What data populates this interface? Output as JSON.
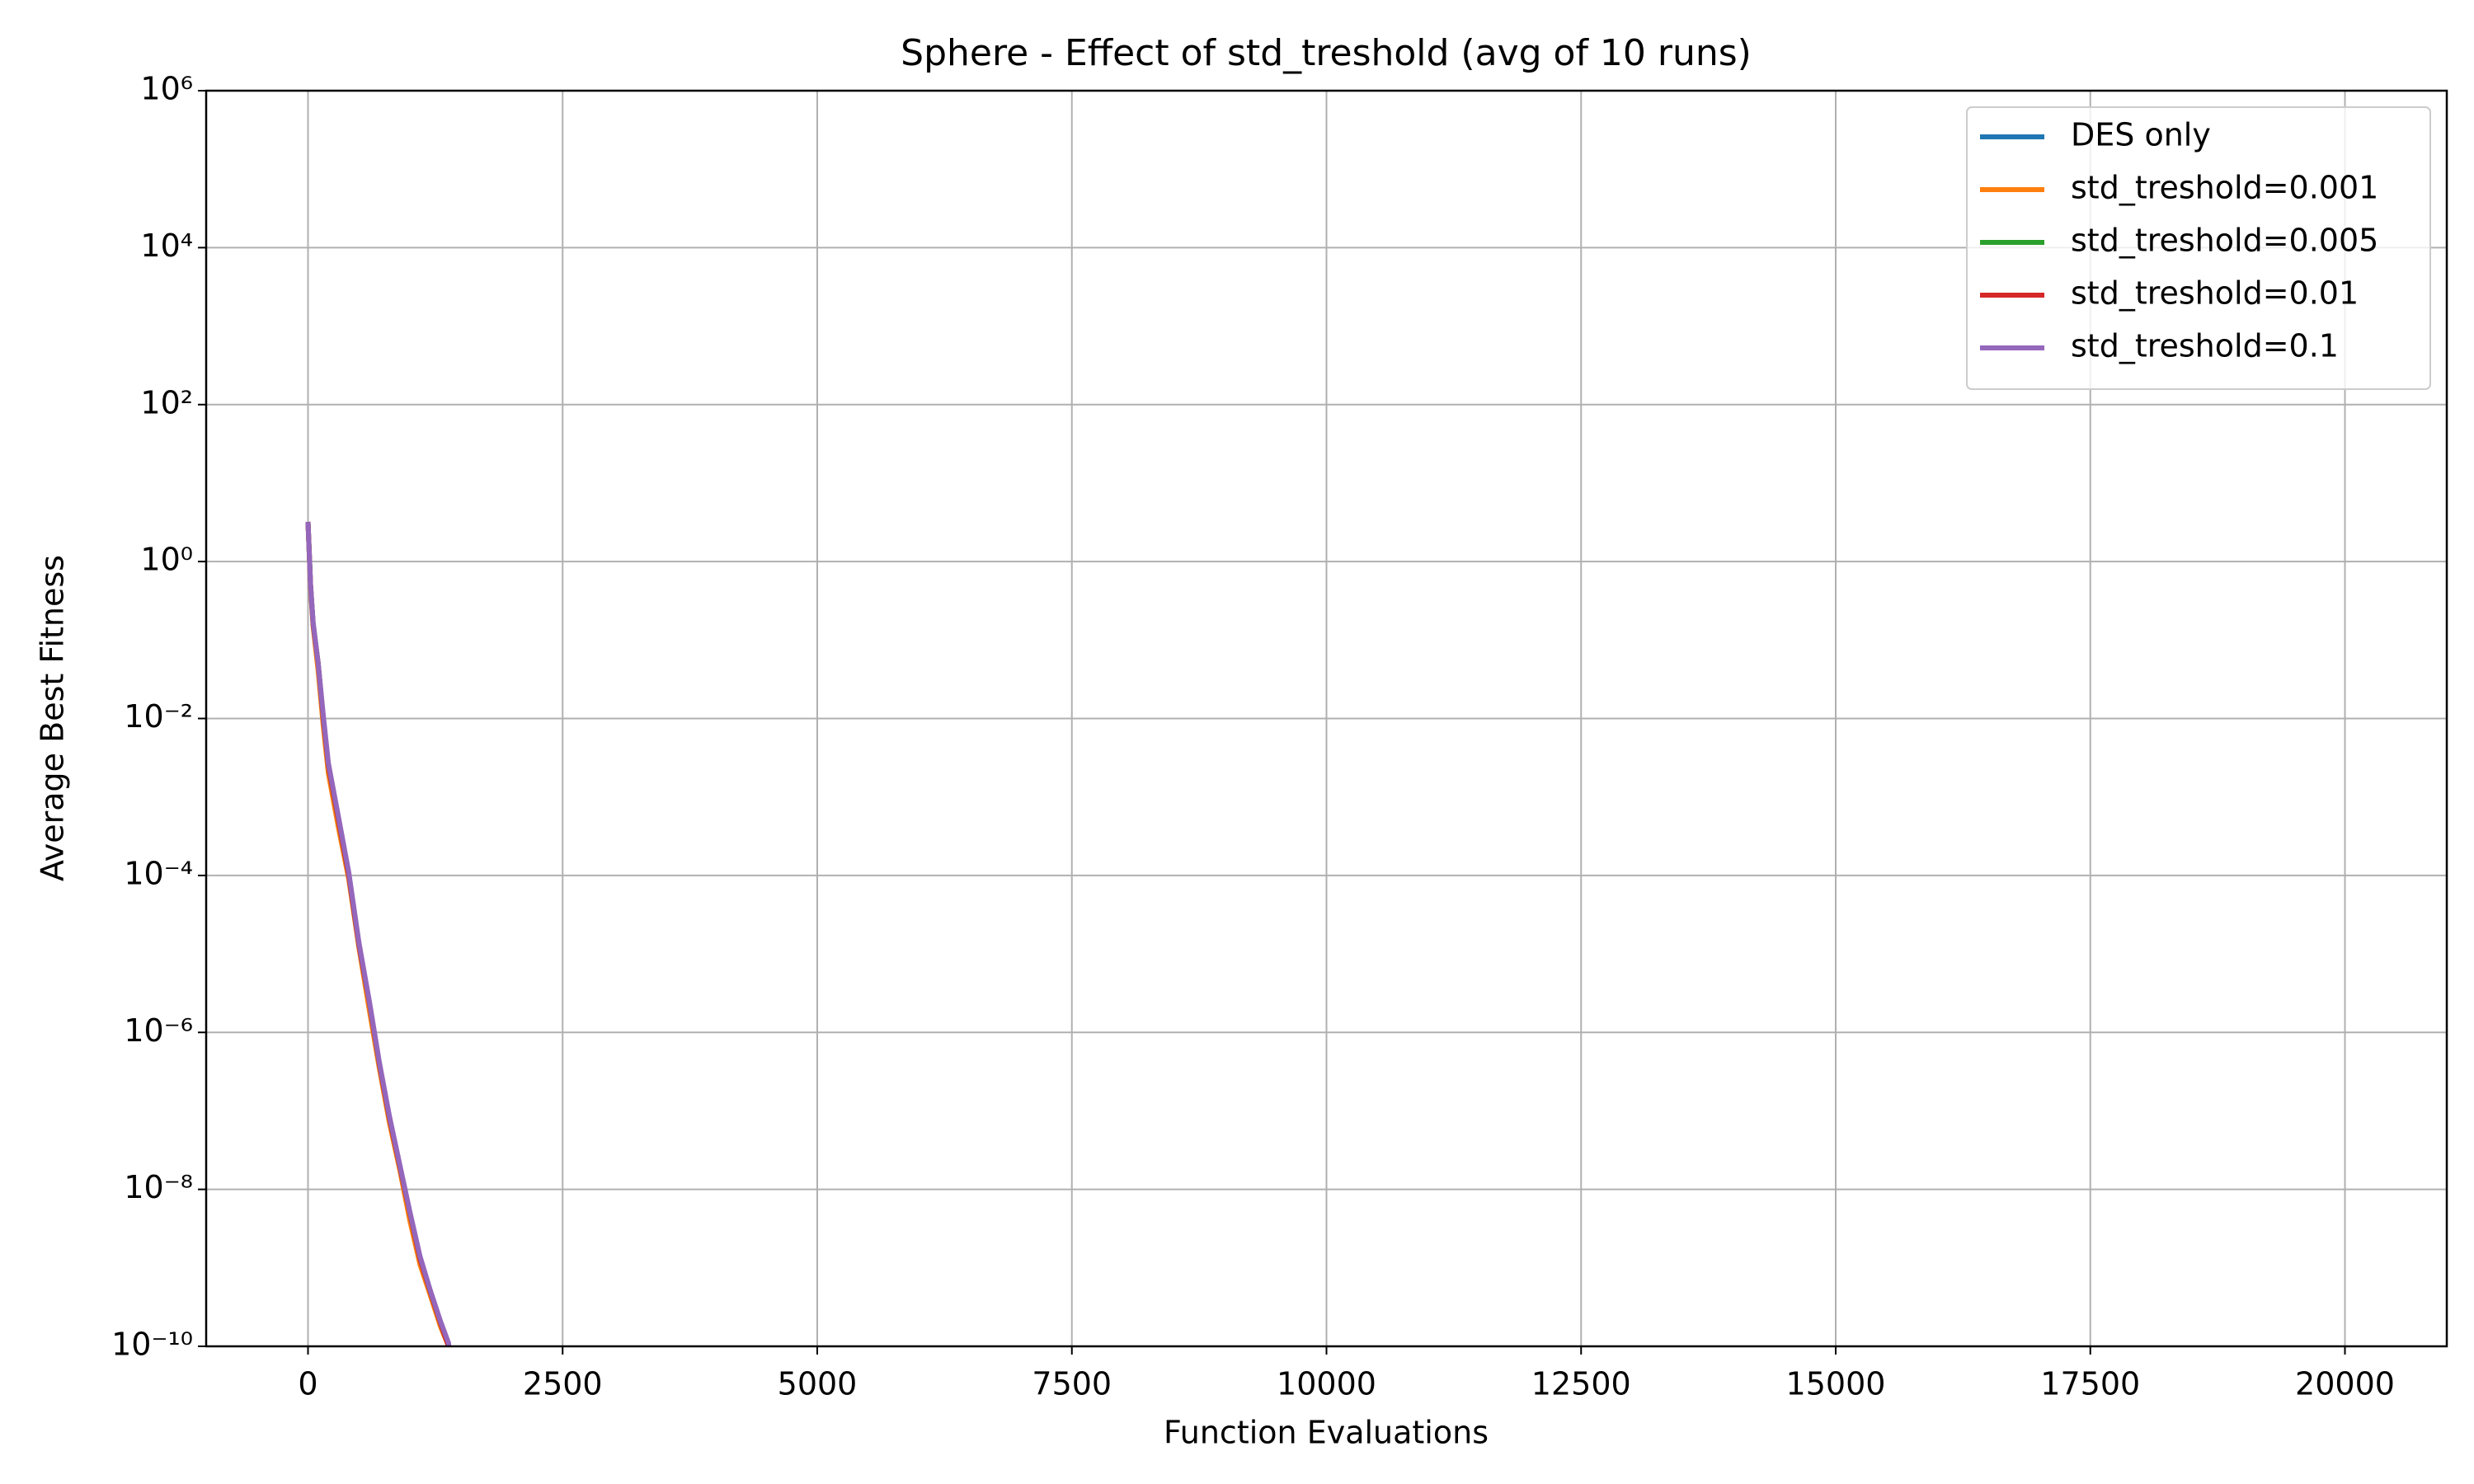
{
  "chart_data": {
    "type": "line",
    "title": "Sphere - Effect of std_treshold (avg of 10 runs)",
    "x_label": "Function Evaluations",
    "y_label": "Average Best Fitness",
    "log_y": true,
    "grid": true,
    "legend": "upper right",
    "xlim": [
      -1000,
      21000
    ],
    "xticks": [
      0,
      2500,
      5000,
      7500,
      10000,
      12500,
      15000,
      17500,
      20000
    ],
    "ylim": [
      1e-10,
      1000000
    ],
    "yticks": [
      {
        "value": 1e-10,
        "label": "10⁻¹⁰"
      },
      {
        "value": 1e-08,
        "label": "10⁻⁸"
      },
      {
        "value": 1e-06,
        "label": "10⁻⁶"
      },
      {
        "value": 0.0001,
        "label": "10⁻⁴"
      },
      {
        "value": 0.01,
        "label": "10⁻²"
      },
      {
        "value": 1,
        "label": "10⁰"
      },
      {
        "value": 100,
        "label": "10²"
      },
      {
        "value": 10000,
        "label": "10⁴"
      },
      {
        "value": 1000000,
        "label": "10⁶"
      }
    ],
    "x": [
      0,
      25,
      50,
      100,
      150,
      200,
      300,
      400,
      500,
      600,
      700,
      800,
      900,
      1000,
      1100,
      1200,
      1300,
      1380,
      1420
    ],
    "series": [
      {
        "name": "DES only",
        "color": "#1f77b4",
        "values": [
          3.2,
          0.5,
          0.16,
          0.05,
          0.01,
          0.0025,
          0.0005,
          0.0001,
          1.3e-05,
          2.5e-06,
          4e-07,
          8e-08,
          2e-08,
          5e-09,
          1.3e-09,
          5e-10,
          2e-10,
          1e-10,
          3e-11
        ]
      },
      {
        "name": "std_treshold=0.001",
        "color": "#ff7f0e",
        "values": [
          3.2,
          0.45,
          0.15,
          0.04,
          0.008,
          0.002,
          0.0004,
          9e-05,
          1.2e-05,
          2e-06,
          3.5e-07,
          7e-08,
          1.8e-08,
          4e-09,
          1.1e-09,
          4.5e-10,
          1.8e-10,
          1e-10,
          3e-11
        ]
      },
      {
        "name": "std_treshold=0.005",
        "color": "#2ca02c",
        "values": [
          3.2,
          0.5,
          0.16,
          0.05,
          0.01,
          0.0025,
          0.0005,
          0.0001,
          1.3e-05,
          2.5e-06,
          4e-07,
          8e-08,
          2e-08,
          5e-09,
          1.3e-09,
          5e-10,
          2e-10,
          1e-10,
          3e-11
        ]
      },
      {
        "name": "std_treshold=0.01",
        "color": "#d62728",
        "values": [
          3.2,
          0.5,
          0.16,
          0.05,
          0.01,
          0.0025,
          0.0005,
          0.0001,
          1.3e-05,
          2.5e-06,
          4e-07,
          8e-08,
          2e-08,
          5e-09,
          1.3e-09,
          5e-10,
          2e-10,
          1e-10,
          3e-11
        ]
      },
      {
        "name": "std_treshold=0.1",
        "color": "#9467bd",
        "values": [
          3.2,
          0.5,
          0.17,
          0.05,
          0.011,
          0.0027,
          0.00055,
          0.00011,
          1.4e-05,
          2.6e-06,
          4.2e-07,
          8.5e-08,
          2.1e-08,
          5.2e-09,
          1.4e-09,
          5.2e-10,
          2.1e-10,
          1.1e-10,
          3e-11
        ]
      }
    ]
  }
}
